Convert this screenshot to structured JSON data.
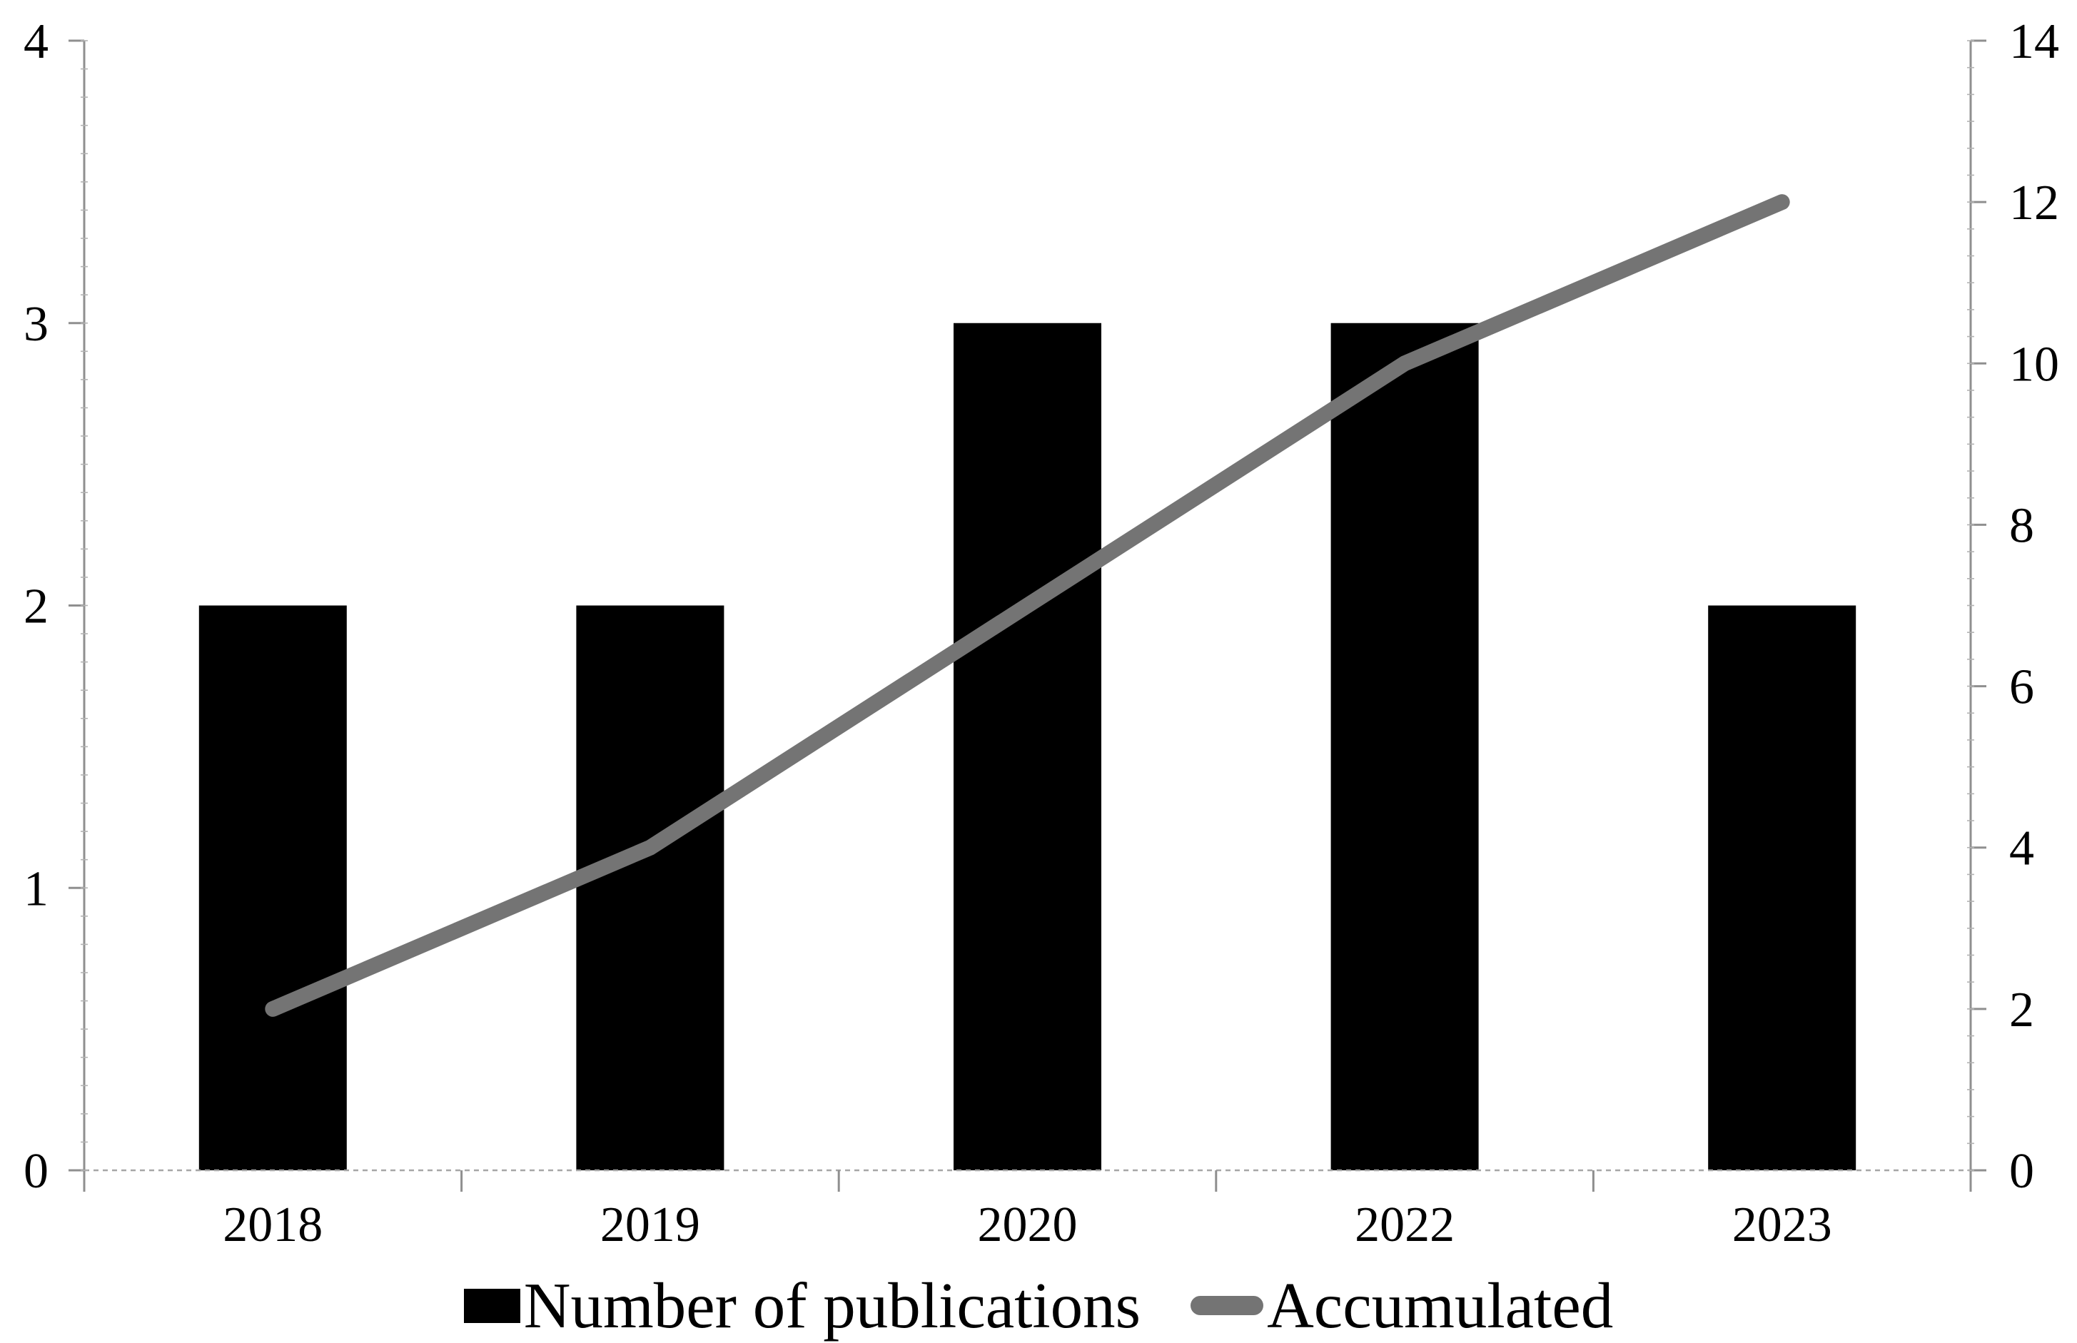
{
  "figure": {
    "background": "#ffffff",
    "title": ""
  },
  "legend": {
    "position": "bottom",
    "items": [
      {
        "label": "Number of publications",
        "marker": "bar-swatch",
        "color": "#000000"
      },
      {
        "label": "Accumulated",
        "marker": "line-swatch",
        "color": "#7f7f7f"
      }
    ]
  },
  "chart_data": {
    "type": "bar",
    "subtype": "combo-bar-line-dual-axis",
    "categories": [
      "2018",
      "2019",
      "2020",
      "2022",
      "2023"
    ],
    "series": [
      {
        "name": "Number of publications",
        "type": "bar",
        "axis": "left",
        "color": "#000000",
        "values": [
          2,
          2,
          3,
          3,
          2
        ]
      },
      {
        "name": "Accumulated",
        "type": "line",
        "axis": "right",
        "color": "#747474",
        "values": [
          2,
          4,
          7,
          10,
          12
        ]
      }
    ],
    "left_axis": {
      "min": 0,
      "max": 4,
      "ticks": [
        0,
        1,
        2,
        3,
        4
      ],
      "minor_step": 0.1
    },
    "right_axis": {
      "min": 0,
      "max": 14,
      "ticks": [
        0,
        2,
        4,
        6,
        8,
        10,
        12,
        14
      ],
      "minor_step": 0.3333333
    },
    "title": "",
    "xlabel": "",
    "ylabel": "",
    "grid": false,
    "legend_position": "bottom"
  },
  "axis_style": {
    "axis_line_color": "#8f8f8f",
    "baseline_dash_color": "#a6a6a6",
    "minor_tick_color": "#b3b3b3",
    "tick_label_color": "#000000"
  }
}
